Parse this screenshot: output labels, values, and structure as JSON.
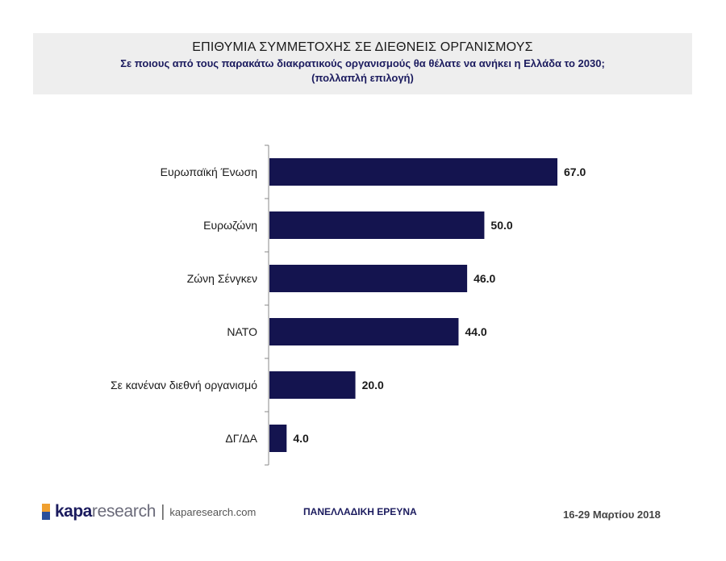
{
  "header": {
    "title": "ΕΠΙΘΥΜΙΑ ΣΥΜΜΕΤΟΧΗΣ ΣΕ ΔΙΕΘΝΕΙΣ ΟΡΓΑΝΙΣΜΟΥΣ",
    "subtitle_line1": "Σε ποιους από τους παρακάτω διακρατικούς οργανισμούς θα θέλατε να ανήκει η Ελλάδα το 2030;",
    "subtitle_line2": "(πολλαπλή επιλογή)"
  },
  "chart_data": {
    "type": "bar",
    "orientation": "horizontal",
    "categories": [
      "Ευρωπαϊκή Ένωση",
      "Ευρωζώνη",
      "Ζώνη Σένγκεν",
      "ΝΑΤΟ",
      "Σε κανέναν διεθνή οργανισμό",
      "ΔΓ/ΔΑ"
    ],
    "values": [
      67.0,
      50.0,
      46.0,
      44.0,
      20.0,
      4.0
    ],
    "value_labels": [
      "67.0",
      "50.0",
      "46.0",
      "44.0",
      "20.0",
      "4.0"
    ],
    "xlim": [
      0,
      80
    ],
    "bar_color": "#14144f",
    "grid": false
  },
  "footer": {
    "logo_part1": "kapa",
    "logo_part2": "research",
    "separator": "|",
    "url": "kaparesearch.com",
    "center_text": "ΠΑΝΕΛΛΑΔΙΚΗ ΕΡΕΥΝΑ",
    "date": "16-29 Μαρτίου 2018"
  },
  "colors": {
    "brand_navy": "#1b1b5e",
    "logo_orange": "#f0a030",
    "logo_blue": "#2a4f9a"
  }
}
